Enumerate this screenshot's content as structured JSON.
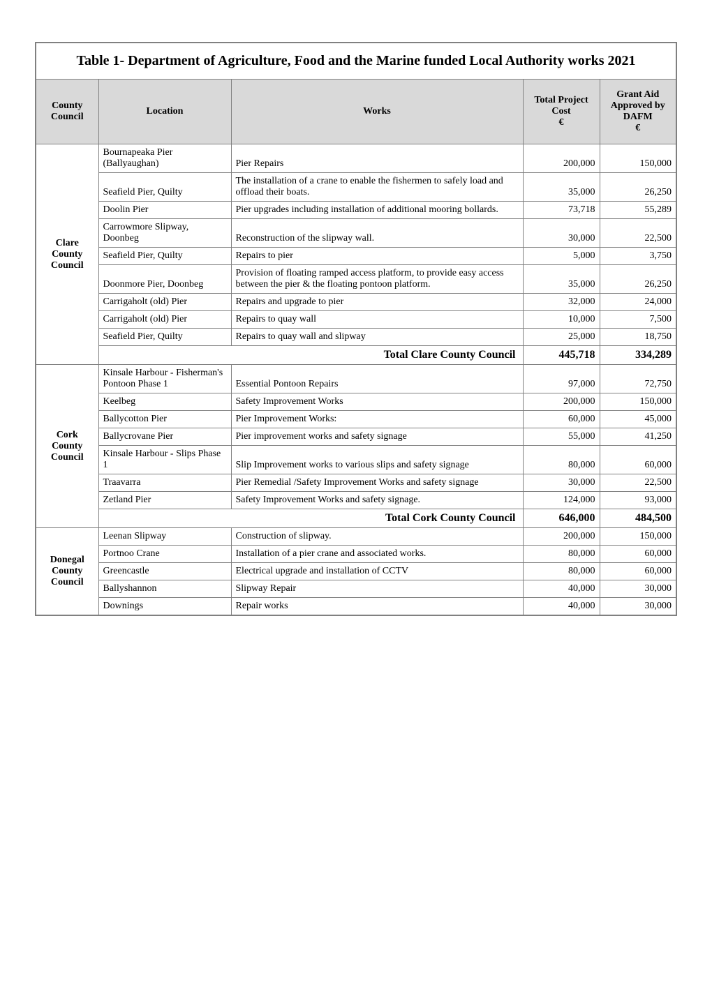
{
  "table": {
    "title": "Table 1- Department of Agriculture, Food and the Marine funded Local Authority works 2021",
    "columns": {
      "county": "County Council",
      "location": "Location",
      "works": "Works",
      "cost": "Total Project Cost\n€",
      "grant": "Grant Aid Approved by DAFM\n€"
    },
    "header_bg": "#d9d9d9",
    "border_color": "#808080",
    "groups": [
      {
        "county": "Clare County Council",
        "rows": [
          {
            "location": "Bournapeaka Pier (Ballyaughan)",
            "works": "Pier Repairs",
            "cost": "200,000",
            "grant": "150,000"
          },
          {
            "location": "Seafield Pier, Quilty",
            "works": "The installation of a crane to enable the fishermen to safely load and offload their boats.",
            "cost": "35,000",
            "grant": "26,250"
          },
          {
            "location": "Doolin Pier",
            "works": "Pier upgrades including installation of additional mooring bollards.",
            "cost": "73,718",
            "grant": "55,289"
          },
          {
            "location": "Carrowmore Slipway, Doonbeg",
            "works": "Reconstruction of the slipway wall.",
            "cost": "30,000",
            "grant": "22,500"
          },
          {
            "location": "Seafield Pier, Quilty",
            "works": "Repairs to pier",
            "cost": "5,000",
            "grant": "3,750"
          },
          {
            "location": "Doonmore Pier, Doonbeg",
            "works": "Provision of floating ramped access platform, to provide easy access between the pier & the floating pontoon platform.",
            "cost": "35,000",
            "grant": "26,250"
          },
          {
            "location": "Carrigaholt (old) Pier",
            "works": "Repairs and upgrade to pier",
            "cost": "32,000",
            "grant": "24,000"
          },
          {
            "location": "Carrigaholt (old) Pier",
            "works": "Repairs to quay wall",
            "cost": "10,000",
            "grant": "7,500"
          },
          {
            "location": "Seafield Pier, Quilty",
            "works": "Repairs to quay wall and slipway",
            "cost": "25,000",
            "grant": "18,750"
          }
        ],
        "total_label": "Total Clare County Council",
        "total_cost": "445,718",
        "total_grant": "334,289"
      },
      {
        "county": "Cork County Council",
        "rows": [
          {
            "location": "Kinsale Harbour - Fisherman's Pontoon Phase 1",
            "works": "Essential Pontoon Repairs",
            "cost": "97,000",
            "grant": "72,750"
          },
          {
            "location": "Keelbeg",
            "works": "Safety Improvement Works",
            "cost": "200,000",
            "grant": "150,000"
          },
          {
            "location": "Ballycotton Pier",
            "works": "Pier Improvement Works:",
            "cost": "60,000",
            "grant": "45,000"
          },
          {
            "location": "Ballycrovane Pier",
            "works": "Pier improvement works and safety signage",
            "cost": "55,000",
            "grant": "41,250"
          },
          {
            "location": "Kinsale Harbour - Slips Phase 1",
            "works": "Slip Improvement works to various slips and safety signage",
            "cost": "80,000",
            "grant": "60,000"
          },
          {
            "location": "Traavarra",
            "works": "Pier Remedial /Safety Improvement Works and safety signage",
            "cost": "30,000",
            "grant": "22,500"
          },
          {
            "location": "Zetland Pier",
            "works": "Safety Improvement Works and safety signage.",
            "cost": "124,000",
            "grant": "93,000"
          }
        ],
        "total_label": "Total Cork County Council",
        "total_cost": "646,000",
        "total_grant": "484,500"
      },
      {
        "county": "Donegal County Council",
        "rows": [
          {
            "location": "Leenan Slipway",
            "works": "Construction of slipway.",
            "cost": "200,000",
            "grant": "150,000"
          },
          {
            "location": "Portnoo Crane",
            "works": "Installation of a pier crane and associated works.",
            "cost": "80,000",
            "grant": "60,000"
          },
          {
            "location": "Greencastle",
            "works": "Electrical upgrade and installation of CCTV",
            "cost": "80,000",
            "grant": "60,000"
          },
          {
            "location": "Ballyshannon",
            "works": "Slipway Repair",
            "cost": "40,000",
            "grant": "30,000"
          },
          {
            "location": "Downings",
            "works": "Repair works",
            "cost": "40,000",
            "grant": "30,000"
          }
        ]
      }
    ]
  }
}
